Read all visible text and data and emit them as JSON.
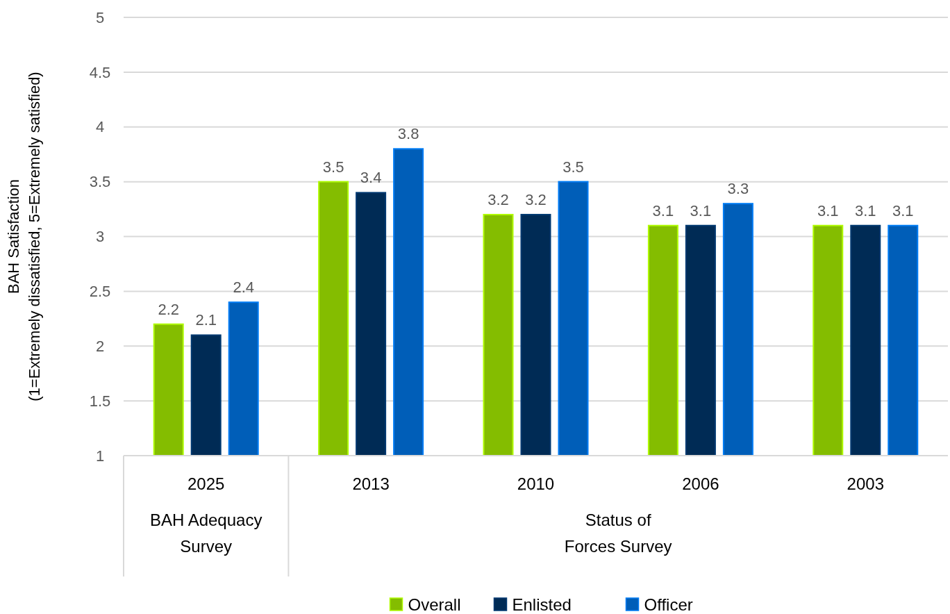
{
  "chart_data": {
    "type": "bar",
    "ylabel": "BAH Satisfaction\n(1=Extremely dissatisfied, 5=Extremely satisfied)",
    "categories": [
      "2025",
      "2013",
      "2010",
      "2006",
      "2003"
    ],
    "series": [
      {
        "name": "Overall",
        "color": "#84bd00",
        "values": [
          2.2,
          3.5,
          3.2,
          3.1,
          3.1
        ]
      },
      {
        "name": "Enlisted",
        "color": "#002b55",
        "values": [
          2.1,
          3.4,
          3.2,
          3.1,
          3.1
        ]
      },
      {
        "name": "Officer",
        "color": "#005eb8",
        "values": [
          2.4,
          3.8,
          3.5,
          3.3,
          3.1
        ]
      }
    ],
    "annotations": [
      "BAH Adequacy Survey",
      "Status of Forces Survey"
    ],
    "ylim": [
      1,
      5
    ],
    "yticks": [
      1,
      1.5,
      2,
      2.5,
      3,
      3.5,
      4,
      4.5,
      5
    ],
    "grid": "y",
    "data_labels": true,
    "legend": "bottom"
  }
}
